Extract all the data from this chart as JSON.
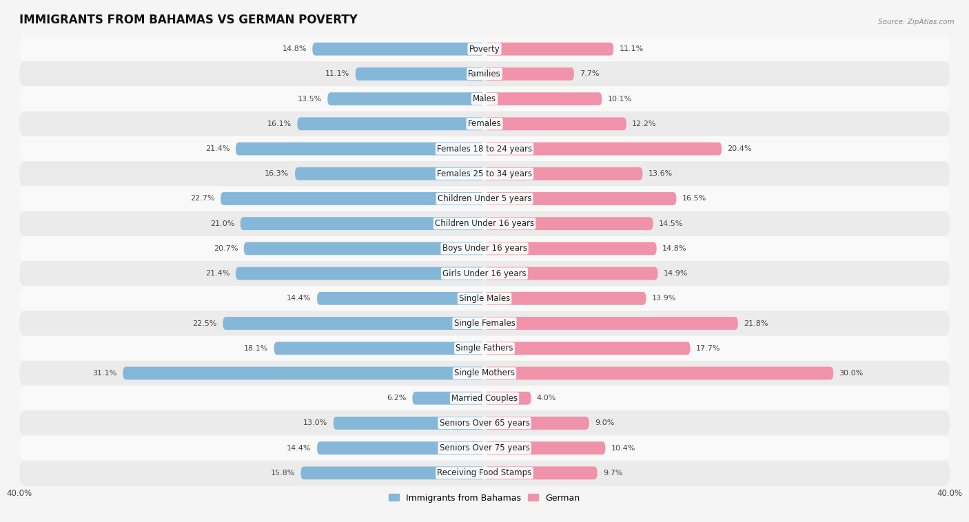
{
  "title": "IMMIGRANTS FROM BAHAMAS VS GERMAN POVERTY",
  "source": "Source: ZipAtlas.com",
  "categories": [
    "Poverty",
    "Families",
    "Males",
    "Females",
    "Females 18 to 24 years",
    "Females 25 to 34 years",
    "Children Under 5 years",
    "Children Under 16 years",
    "Boys Under 16 years",
    "Girls Under 16 years",
    "Single Males",
    "Single Females",
    "Single Fathers",
    "Single Mothers",
    "Married Couples",
    "Seniors Over 65 years",
    "Seniors Over 75 years",
    "Receiving Food Stamps"
  ],
  "bahamas_values": [
    14.8,
    11.1,
    13.5,
    16.1,
    21.4,
    16.3,
    22.7,
    21.0,
    20.7,
    21.4,
    14.4,
    22.5,
    18.1,
    31.1,
    6.2,
    13.0,
    14.4,
    15.8
  ],
  "german_values": [
    11.1,
    7.7,
    10.1,
    12.2,
    20.4,
    13.6,
    16.5,
    14.5,
    14.8,
    14.9,
    13.9,
    21.8,
    17.7,
    30.0,
    4.0,
    9.0,
    10.4,
    9.7
  ],
  "bahamas_color": "#85b8d8",
  "german_color": "#f093aa",
  "bahamas_label": "Immigrants from Bahamas",
  "german_label": "German",
  "xlim": 40.0,
  "bg_color": "#f5f5f5",
  "row_light": "#f9f9f9",
  "row_dark": "#ebebeb",
  "title_fontsize": 12,
  "label_fontsize": 8.5,
  "value_fontsize": 8.0
}
